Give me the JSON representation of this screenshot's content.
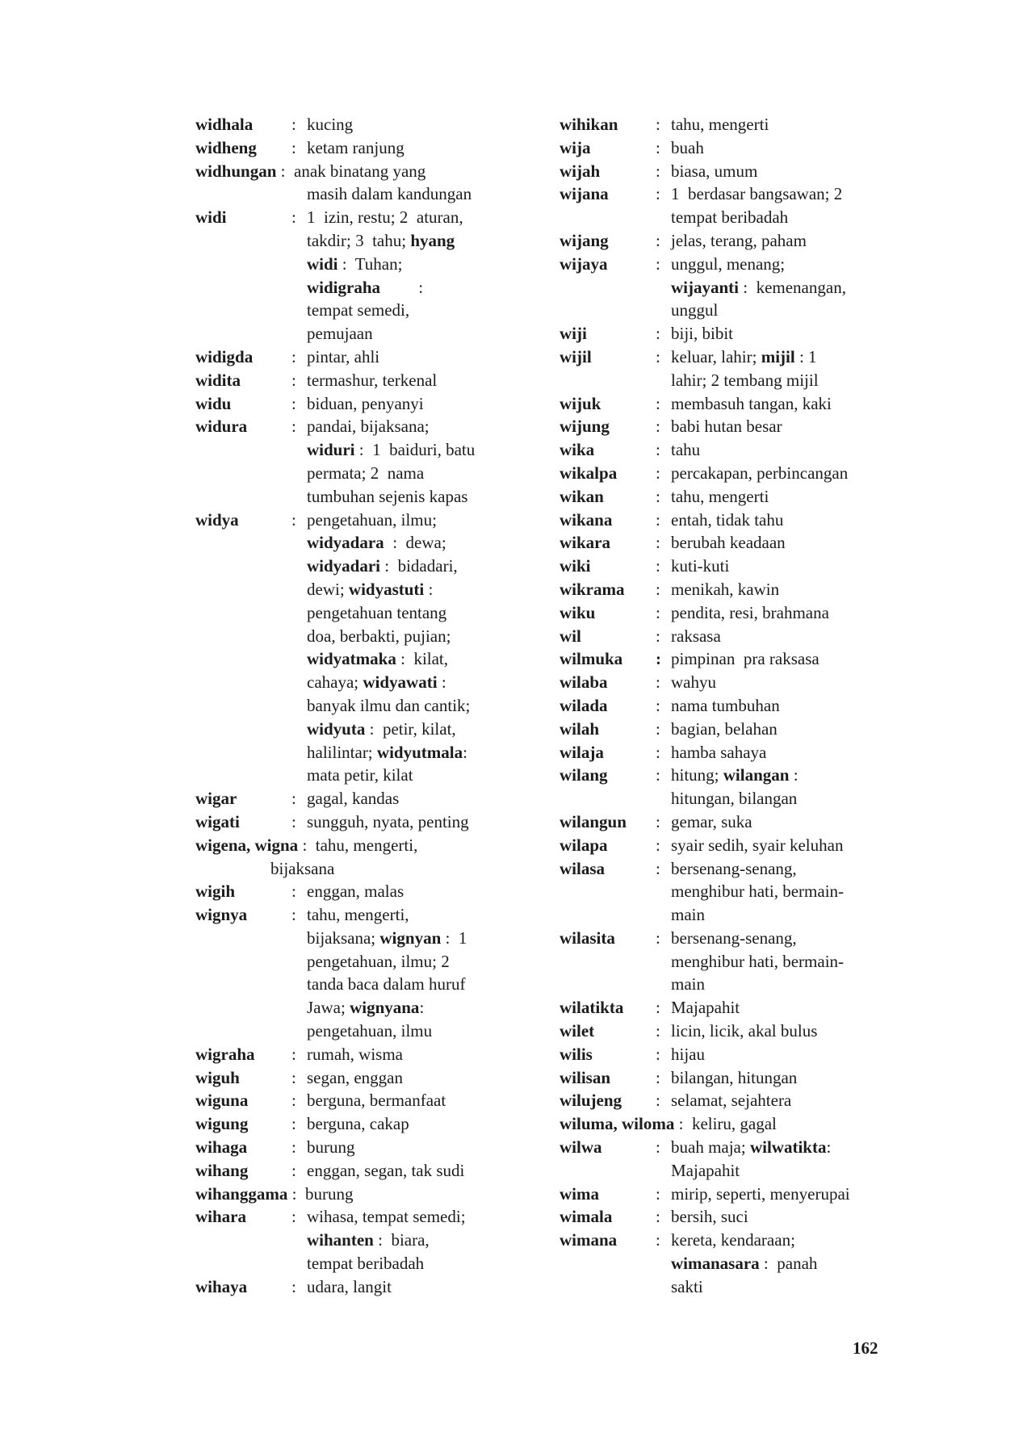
{
  "page_number": "162",
  "separator": ":",
  "columns": {
    "left": [
      {
        "hw": "widhala",
        "lines": [
          [
            {
              "t": "kucing"
            }
          ]
        ]
      },
      {
        "hw": "widheng",
        "lines": [
          [
            {
              "t": "ketam ranjung"
            }
          ]
        ]
      },
      {
        "hw": "widhungan",
        "long": true,
        "lines": [
          [
            {
              "t": "anak binatang yang"
            }
          ],
          [
            {
              "t": "masih dalam kandungan"
            }
          ]
        ]
      },
      {
        "hw": "widi",
        "lines": [
          [
            {
              "t": "1  izin, restu; 2  aturan,"
            }
          ],
          [
            {
              "t": "takdir; 3  tahu; "
            },
            {
              "b": "hyang"
            }
          ],
          [
            {
              "b": "widi"
            },
            {
              "t": " :  Tuhan;"
            }
          ],
          [
            {
              "b": "widigraha"
            },
            {
              "t": "         :"
            }
          ],
          [
            {
              "t": "tempat semedi,"
            }
          ],
          [
            {
              "t": "pemujaan"
            }
          ]
        ]
      },
      {
        "hw": "widigda",
        "lines": [
          [
            {
              "t": "pintar, ahli"
            }
          ]
        ]
      },
      {
        "hw": "widita",
        "lines": [
          [
            {
              "t": "termashur, terkenal"
            }
          ]
        ]
      },
      {
        "hw": "widu",
        "lines": [
          [
            {
              "t": "biduan, penyanyi"
            }
          ]
        ]
      },
      {
        "hw": "widura",
        "lines": [
          [
            {
              "t": "pandai, bijaksana;"
            }
          ],
          [
            {
              "b": "widuri"
            },
            {
              "t": " :  1  baiduri, batu"
            }
          ],
          [
            {
              "t": "permata; 2  nama"
            }
          ],
          [
            {
              "t": "tumbuhan sejenis kapas"
            }
          ]
        ]
      },
      {
        "hw": "widya",
        "lines": [
          [
            {
              "t": "pengetahuan, ilmu;"
            }
          ],
          [
            {
              "b": "widyadara"
            },
            {
              "t": "  :  dewa;"
            }
          ],
          [
            {
              "b": "widyadari"
            },
            {
              "t": " :  bidadari,"
            }
          ],
          [
            {
              "t": "dewi; "
            },
            {
              "b": "widyastuti"
            },
            {
              "t": " :"
            }
          ],
          [
            {
              "t": "pengetahuan tentang"
            }
          ],
          [
            {
              "t": "doa, berbakti, pujian;"
            }
          ],
          [
            {
              "b": "widyatmaka"
            },
            {
              "t": " :  kilat,"
            }
          ],
          [
            {
              "t": "cahaya; "
            },
            {
              "b": "widyawati"
            },
            {
              "t": " :"
            }
          ],
          [
            {
              "t": "banyak ilmu dan cantik;"
            }
          ],
          [
            {
              "b": "widyuta"
            },
            {
              "t": " :  petir, kilat,"
            }
          ],
          [
            {
              "t": "halilintar; "
            },
            {
              "b": "widyutmala"
            },
            {
              "t": ":"
            }
          ],
          [
            {
              "t": "mata petir, kilat"
            }
          ]
        ]
      },
      {
        "hw": "wigar",
        "lines": [
          [
            {
              "t": "gagal, kandas"
            }
          ]
        ]
      },
      {
        "hw": "wigati",
        "lines": [
          [
            {
              "t": "sungguh, nyata, penting"
            }
          ]
        ]
      },
      {
        "hw": "wigena, wigna",
        "long": true,
        "cont": "shallow",
        "lines": [
          [
            {
              "t": "tahu, mengerti,"
            }
          ],
          [
            {
              "t": "bijaksana"
            }
          ]
        ]
      },
      {
        "hw": "wigih",
        "lines": [
          [
            {
              "t": "enggan, malas"
            }
          ]
        ]
      },
      {
        "hw": "wignya",
        "lines": [
          [
            {
              "t": "tahu, mengerti,"
            }
          ],
          [
            {
              "t": "bijaksana; "
            },
            {
              "b": "wignyan"
            },
            {
              "t": " :  1"
            }
          ],
          [
            {
              "t": "pengetahuan, ilmu; 2"
            }
          ],
          [
            {
              "t": "tanda baca dalam huruf"
            }
          ],
          [
            {
              "t": "Jawa; "
            },
            {
              "b": "wignyana"
            },
            {
              "t": ":"
            }
          ],
          [
            {
              "t": "pengetahuan, ilmu"
            }
          ]
        ]
      },
      {
        "hw": "wigraha",
        "lines": [
          [
            {
              "t": "rumah, wisma"
            }
          ]
        ]
      },
      {
        "hw": "wiguh",
        "lines": [
          [
            {
              "t": "segan, enggan"
            }
          ]
        ]
      },
      {
        "hw": "wiguna",
        "lines": [
          [
            {
              "t": "berguna, bermanfaat"
            }
          ]
        ]
      },
      {
        "hw": "wigung",
        "lines": [
          [
            {
              "t": "berguna, cakap"
            }
          ]
        ]
      },
      {
        "hw": "wihaga",
        "lines": [
          [
            {
              "t": "burung"
            }
          ]
        ]
      },
      {
        "hw": "wihang",
        "lines": [
          [
            {
              "t": "enggan, segan, tak sudi"
            }
          ]
        ]
      },
      {
        "hw": "wihanggama",
        "long": true,
        "lines": [
          [
            {
              "t": "burung"
            }
          ]
        ]
      },
      {
        "hw": "wihara",
        "lines": [
          [
            {
              "t": "wihasa, tempat semedi;"
            }
          ],
          [
            {
              "b": "wihanten"
            },
            {
              "t": " :  biara,"
            }
          ],
          [
            {
              "t": "tempat beribadah"
            }
          ]
        ]
      },
      {
        "hw": "wihaya",
        "lines": [
          [
            {
              "t": "udara, langit"
            }
          ]
        ]
      }
    ],
    "right": [
      {
        "hw": "wihikan",
        "lines": [
          [
            {
              "t": "tahu, mengerti"
            }
          ]
        ]
      },
      {
        "hw": "wija",
        "lines": [
          [
            {
              "t": "buah"
            }
          ]
        ]
      },
      {
        "hw": "wijah",
        "lines": [
          [
            {
              "t": "biasa, umum"
            }
          ]
        ]
      },
      {
        "hw": "wijana",
        "lines": [
          [
            {
              "t": "1  berdasar bangsawan; 2"
            }
          ],
          [
            {
              "t": "tempat beribadah"
            }
          ]
        ]
      },
      {
        "hw": "wijang",
        "lines": [
          [
            {
              "t": "jelas, terang, paham"
            }
          ]
        ]
      },
      {
        "hw": "wijaya",
        "lines": [
          [
            {
              "t": "unggul, menang;"
            }
          ],
          [
            {
              "b": "wijayanti"
            },
            {
              "t": " :  kemenangan,"
            }
          ],
          [
            {
              "t": "unggul"
            }
          ]
        ]
      },
      {
        "hw": "wiji",
        "lines": [
          [
            {
              "t": "biji, bibit"
            }
          ]
        ]
      },
      {
        "hw": "wijil",
        "lines": [
          [
            {
              "t": "keluar, lahir; "
            },
            {
              "b": "mijil"
            },
            {
              "t": " : 1"
            }
          ],
          [
            {
              "t": "lahir; 2 tembang mijil"
            }
          ]
        ]
      },
      {
        "hw": "wijuk",
        "lines": [
          [
            {
              "t": "membasuh tangan, kaki"
            }
          ]
        ]
      },
      {
        "hw": "wijung",
        "lines": [
          [
            {
              "t": "babi hutan besar"
            }
          ]
        ]
      },
      {
        "hw": "wika",
        "lines": [
          [
            {
              "t": "tahu"
            }
          ]
        ]
      },
      {
        "hw": "wikalpa",
        "lines": [
          [
            {
              "t": "percakapan, perbincangan"
            }
          ]
        ]
      },
      {
        "hw": "wikan",
        "lines": [
          [
            {
              "t": "tahu, mengerti"
            }
          ]
        ]
      },
      {
        "hw": "wikana",
        "lines": [
          [
            {
              "t": "entah, tidak tahu"
            }
          ]
        ]
      },
      {
        "hw": "wikara",
        "lines": [
          [
            {
              "t": "berubah keadaan"
            }
          ]
        ]
      },
      {
        "hw": "wiki",
        "lines": [
          [
            {
              "t": "kuti-kuti"
            }
          ]
        ]
      },
      {
        "hw": "wikrama",
        "lines": [
          [
            {
              "t": "menikah, kawin"
            }
          ]
        ]
      },
      {
        "hw": "wiku",
        "lines": [
          [
            {
              "t": "pendita, resi, brahmana"
            }
          ]
        ]
      },
      {
        "hw": "wil",
        "lines": [
          [
            {
              "t": "raksasa"
            }
          ]
        ]
      },
      {
        "hw": "wilmuka",
        "bold_colon": true,
        "lines": [
          [
            {
              "t": "pimpinan  pra raksasa"
            }
          ]
        ]
      },
      {
        "hw": "wilaba",
        "lines": [
          [
            {
              "t": "wahyu"
            }
          ]
        ]
      },
      {
        "hw": "wilada",
        "lines": [
          [
            {
              "t": "nama tumbuhan"
            }
          ]
        ]
      },
      {
        "hw": "wilah",
        "lines": [
          [
            {
              "t": "bagian, belahan"
            }
          ]
        ]
      },
      {
        "hw": "wilaja",
        "lines": [
          [
            {
              "t": "hamba sahaya"
            }
          ]
        ]
      },
      {
        "hw": "wilang",
        "lines": [
          [
            {
              "t": "hitung; "
            },
            {
              "b": "wilangan"
            },
            {
              "t": " :"
            }
          ],
          [
            {
              "t": "hitungan, bilangan"
            }
          ]
        ]
      },
      {
        "hw": "wilangun",
        "lines": [
          [
            {
              "t": "gemar, suka"
            }
          ]
        ]
      },
      {
        "hw": "wilapa",
        "lines": [
          [
            {
              "t": "syair sedih, syair keluhan"
            }
          ]
        ]
      },
      {
        "hw": "wilasa",
        "lines": [
          [
            {
              "t": "bersenang-senang,"
            }
          ],
          [
            {
              "t": "menghibur hati, bermain-"
            }
          ],
          [
            {
              "t": "main"
            }
          ]
        ]
      },
      {
        "hw": "wilasita",
        "lines": [
          [
            {
              "t": "bersenang-senang,"
            }
          ],
          [
            {
              "t": "menghibur hati, bermain-"
            }
          ],
          [
            {
              "t": "main"
            }
          ]
        ]
      },
      {
        "hw": "wilatikta",
        "lines": [
          [
            {
              "t": "Majapahit"
            }
          ]
        ]
      },
      {
        "hw": "wilet",
        "lines": [
          [
            {
              "t": "licin, licik, akal bulus"
            }
          ]
        ]
      },
      {
        "hw": "wilis",
        "lines": [
          [
            {
              "t": "hijau"
            }
          ]
        ]
      },
      {
        "hw": "wilisan",
        "lines": [
          [
            {
              "t": "bilangan, hitungan"
            }
          ]
        ]
      },
      {
        "hw": "wilujeng",
        "lines": [
          [
            {
              "t": "selamat, sejahtera"
            }
          ]
        ]
      },
      {
        "hw": "wiluma, wiloma",
        "long": true,
        "lines": [
          [
            {
              "t": "keliru, gagal"
            }
          ]
        ]
      },
      {
        "hw": "wilwa",
        "lines": [
          [
            {
              "t": "buah maja; "
            },
            {
              "b": "wilwatikta"
            },
            {
              "t": ":"
            }
          ],
          [
            {
              "t": "Majapahit"
            }
          ]
        ]
      },
      {
        "hw": "wima",
        "lines": [
          [
            {
              "t": "mirip, seperti, menyerupai"
            }
          ]
        ]
      },
      {
        "hw": "wimala",
        "lines": [
          [
            {
              "t": "bersih, suci"
            }
          ]
        ]
      },
      {
        "hw": "wimana",
        "lines": [
          [
            {
              "t": "kereta, kendaraan;"
            }
          ],
          [
            {
              "b": "wimanasara"
            },
            {
              "t": " :  panah"
            }
          ],
          [
            {
              "t": "sakti"
            }
          ]
        ]
      }
    ]
  }
}
